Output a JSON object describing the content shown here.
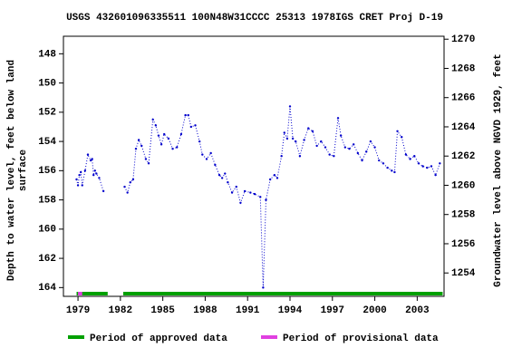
{
  "chart_data": {
    "type": "line",
    "title": "USGS 432601096335511 100N48W31CCCC 25313 1978IGS CRET Proj D-19",
    "y_label_lines": [
      "Depth to water level, feet below land",
      "surface"
    ],
    "y2_label": "Groundwater level above NGVD 1929, feet",
    "xlim": [
      1977.97,
      2004.9
    ],
    "xticks": [
      1979,
      1982,
      1985,
      1988,
      1991,
      1994,
      1997,
      2000,
      2003
    ],
    "ylim": [
      164.6,
      146.8
    ],
    "yticks": [
      148,
      150,
      152,
      154,
      156,
      158,
      160,
      162,
      164
    ],
    "y2lim": [
      1252.4,
      1270.2
    ],
    "y2ticks": [
      1254,
      1256,
      1258,
      1260,
      1262,
      1264,
      1266,
      1268,
      1270
    ],
    "x": [
      1978.9,
      1979.0,
      1979.1,
      1979.2,
      1979.3,
      1979.5,
      1979.7,
      1979.9,
      1980.0,
      1980.1,
      1980.2,
      1980.3,
      1980.5,
      1980.8,
      1981.6,
      1982.3,
      1982.5,
      1982.7,
      1982.9,
      1983.1,
      1983.3,
      1983.5,
      1983.8,
      1984.0,
      1984.3,
      1984.5,
      1984.7,
      1984.9,
      1985.1,
      1985.4,
      1985.7,
      1986.0,
      1986.3,
      1986.6,
      1986.8,
      1987.0,
      1987.3,
      1987.6,
      1987.8,
      1988.1,
      1988.4,
      1988.7,
      1989.0,
      1989.2,
      1989.4,
      1989.6,
      1989.9,
      1990.2,
      1990.5,
      1990.8,
      1991.2,
      1991.5,
      1991.9,
      1992.1,
      1992.3,
      1992.6,
      1992.9,
      1993.1,
      1993.4,
      1993.6,
      1993.8,
      1994.0,
      1994.2,
      1994.4,
      1994.7,
      1995.0,
      1995.3,
      1995.6,
      1995.9,
      1996.2,
      1996.5,
      1996.8,
      1997.1,
      1997.4,
      1997.6,
      1997.9,
      1998.2,
      1998.5,
      1998.8,
      1999.1,
      1999.4,
      1999.7,
      2000.0,
      2000.3,
      2000.6,
      2000.9,
      2001.2,
      2001.4,
      2001.6,
      2001.9,
      2002.2,
      2002.5,
      2002.8,
      2003.1,
      2003.4,
      2003.7,
      2004.0,
      2004.3,
      2004.6
    ],
    "series": [
      {
        "color": "#0000cc",
        "values": [
          156.6,
          157.0,
          156.3,
          156.1,
          157.0,
          156.0,
          154.9,
          155.3,
          155.2,
          156.3,
          156.0,
          156.2,
          156.5,
          157.4,
          null,
          157.1,
          157.5,
          156.8,
          156.6,
          154.5,
          153.9,
          154.3,
          155.2,
          155.5,
          152.5,
          152.9,
          153.6,
          154.2,
          153.5,
          153.8,
          154.5,
          154.4,
          153.5,
          152.2,
          152.2,
          153.0,
          152.9,
          154.0,
          154.9,
          155.2,
          154.8,
          155.6,
          156.3,
          156.5,
          156.2,
          156.8,
          157.5,
          157.1,
          158.2,
          157.4,
          157.5,
          157.6,
          157.8,
          164.0,
          158.0,
          156.6,
          156.3,
          156.5,
          155.0,
          153.4,
          153.8,
          151.6,
          153.8,
          154.0,
          155.0,
          153.9,
          153.1,
          153.3,
          154.3,
          154.0,
          154.4,
          154.9,
          155.0,
          152.4,
          153.6,
          154.4,
          154.5,
          154.2,
          154.8,
          155.3,
          154.7,
          154.0,
          154.4,
          155.3,
          155.5,
          155.8,
          156.0,
          156.1,
          153.3,
          153.7,
          154.9,
          155.2,
          155.0,
          155.5,
          155.7,
          155.8,
          155.7,
          156.3,
          155.5
        ]
      }
    ],
    "legend": [
      {
        "name": "Period of approved data",
        "color": "#00a000"
      },
      {
        "name": "Period of provisional data",
        "color": "#e040e0"
      }
    ],
    "approved_periods": [
      {
        "start": 1978.9,
        "end": 1981.1
      },
      {
        "start": 1982.2,
        "end": 2004.8
      }
    ],
    "provisional_periods": [
      {
        "start": 1979.0,
        "end": 1979.3
      }
    ]
  }
}
